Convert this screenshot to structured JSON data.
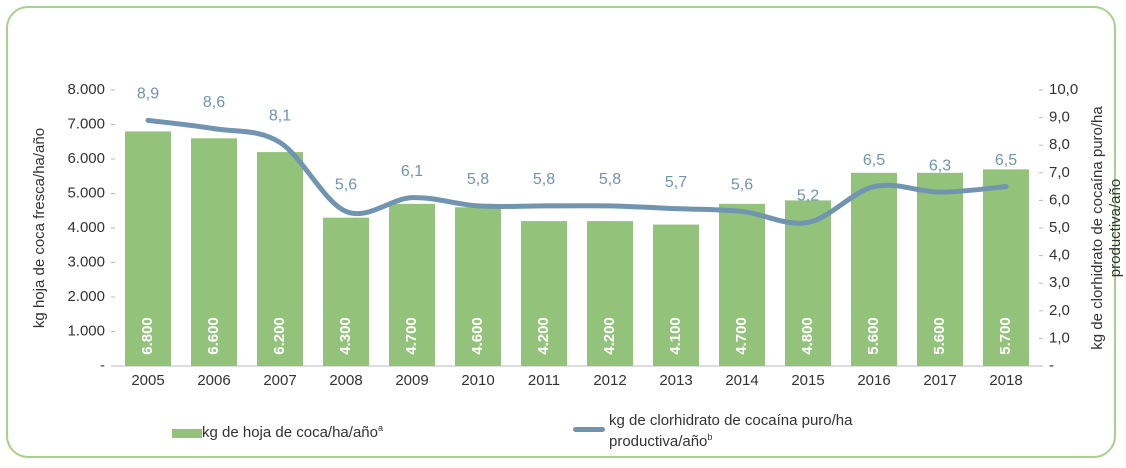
{
  "chart_data": {
    "type": "bar",
    "ylabel": "kg hoja de coca fresca/ha/año",
    "y2label": [
      "kg de clorhidrato de cocaína puro/ha",
      "productiva/año"
    ],
    "categories": [
      "2005",
      "2006",
      "2007",
      "2008",
      "2009",
      "2010",
      "2011",
      "2012",
      "2013",
      "2014",
      "2015",
      "2016",
      "2017",
      "2018"
    ],
    "series": [
      {
        "name": "kg de hoja de coca/ha/año",
        "note": "a",
        "type": "bar",
        "color": "#93c27a",
        "values": [
          6800,
          6600,
          6200,
          4300,
          4700,
          4600,
          4200,
          4200,
          4100,
          4700,
          4800,
          5600,
          5600,
          5700
        ],
        "value_labels": [
          "6.800",
          "6.600",
          "6.200",
          "4.300",
          "4.700",
          "4.600",
          "4.200",
          "4.200",
          "4.100",
          "4.700",
          "4.800",
          "5.600",
          "5.600",
          "5.700"
        ]
      },
      {
        "name": "kg de clorhidrato de cocaína puro/ha productiva/año",
        "note": "b",
        "type": "line",
        "axis": "y2",
        "color": "#7194b0",
        "values": [
          8.9,
          8.6,
          8.1,
          5.6,
          6.1,
          5.8,
          5.8,
          5.8,
          5.7,
          5.6,
          5.2,
          6.5,
          6.3,
          6.5
        ],
        "value_labels": [
          "8,9",
          "8,6",
          "8,1",
          "5,6",
          "6,1",
          "5,8",
          "5,8",
          "5,8",
          "5,7",
          "5,6",
          "5,2",
          "6,5",
          "6,3",
          "6,5"
        ]
      }
    ],
    "ylim": [
      0,
      8000
    ],
    "yticks": [
      {
        "value": 0,
        "label": "-"
      },
      {
        "value": 1000,
        "label": "1.000"
      },
      {
        "value": 2000,
        "label": "2.000"
      },
      {
        "value": 3000,
        "label": "3.000"
      },
      {
        "value": 4000,
        "label": "4.000"
      },
      {
        "value": 5000,
        "label": "5.000"
      },
      {
        "value": 6000,
        "label": "6.000"
      },
      {
        "value": 7000,
        "label": "7.000"
      },
      {
        "value": 8000,
        "label": "8.000"
      }
    ],
    "y2lim": [
      0,
      10
    ],
    "y2ticks": [
      {
        "value": 0,
        "label": "-"
      },
      {
        "value": 1,
        "label": "1,0"
      },
      {
        "value": 2,
        "label": "2,0"
      },
      {
        "value": 3,
        "label": "3,0"
      },
      {
        "value": 4,
        "label": "4,0"
      },
      {
        "value": 5,
        "label": "5,0"
      },
      {
        "value": 6,
        "label": "6,0"
      },
      {
        "value": 7,
        "label": "7,0"
      },
      {
        "value": 8,
        "label": "8,0"
      },
      {
        "value": 9,
        "label": "9,0"
      },
      {
        "value": 10,
        "label": "10,0"
      }
    ],
    "legend": "bottom"
  }
}
